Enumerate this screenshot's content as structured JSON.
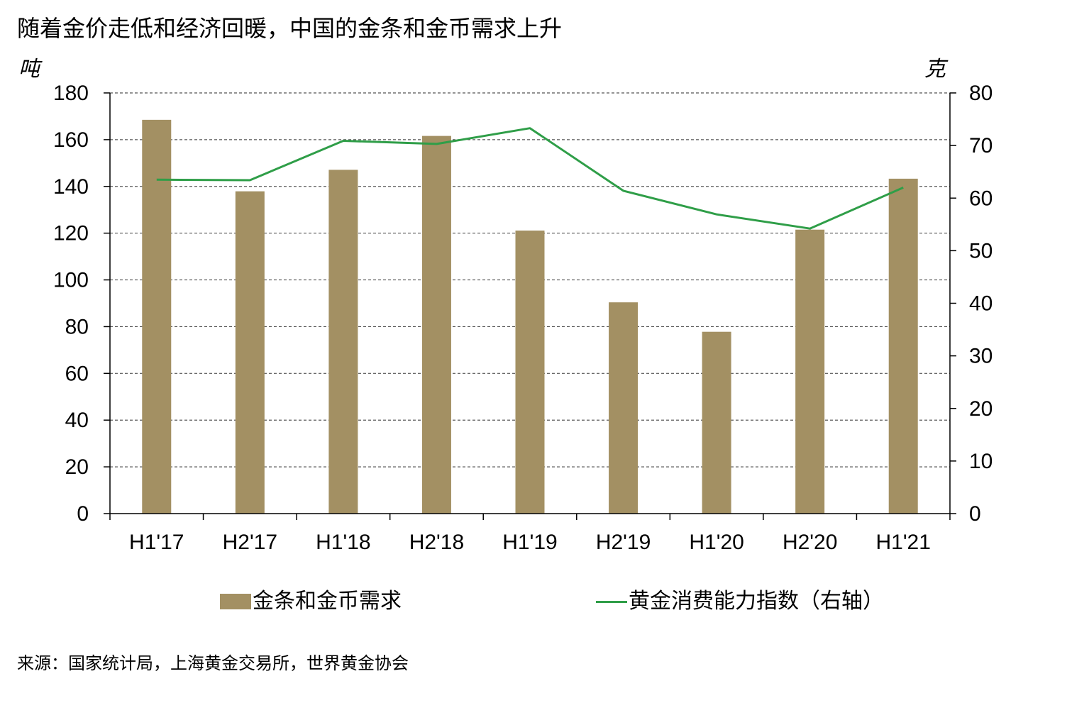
{
  "chart_data": {
    "type": "bar",
    "title": "随着金价走低和经济回暖，中国的金条和金币需求上升",
    "y_unit_left": "吨",
    "y_unit_right": "克",
    "categories": [
      "H1'17",
      "H2'17",
      "H1'18",
      "H2'18",
      "H1'19",
      "H2'19",
      "H1'20",
      "H2'20",
      "H1'21"
    ],
    "series": [
      {
        "name": "金条和金币需求",
        "type": "bar",
        "axis": "left",
        "values": [
          168.5,
          137.9,
          147.1,
          161.6,
          121.1,
          90.4,
          77.8,
          121.5,
          143.3
        ]
      },
      {
        "name": "黄金消费能力指数（右轴）",
        "type": "line",
        "axis": "right",
        "values": [
          63.5,
          63.4,
          70.9,
          70.3,
          73.3,
          61.4,
          56.9,
          54.2,
          62.0
        ]
      }
    ],
    "ylim": [
      0,
      180
    ],
    "yticks": [
      0,
      20,
      40,
      60,
      80,
      100,
      120,
      140,
      160,
      180
    ],
    "ylim_right": [
      0,
      80
    ],
    "yticks_right": [
      0,
      10,
      20,
      30,
      40,
      50,
      60,
      70,
      80
    ],
    "grid": true,
    "legend_position": "bottom",
    "colors": {
      "bar": "#a39063",
      "line": "#2f9e48",
      "grid": "#555555",
      "axis": "#000000"
    }
  },
  "source": "来源：国家统计局，上海黄金交易所，世界黄金协会"
}
